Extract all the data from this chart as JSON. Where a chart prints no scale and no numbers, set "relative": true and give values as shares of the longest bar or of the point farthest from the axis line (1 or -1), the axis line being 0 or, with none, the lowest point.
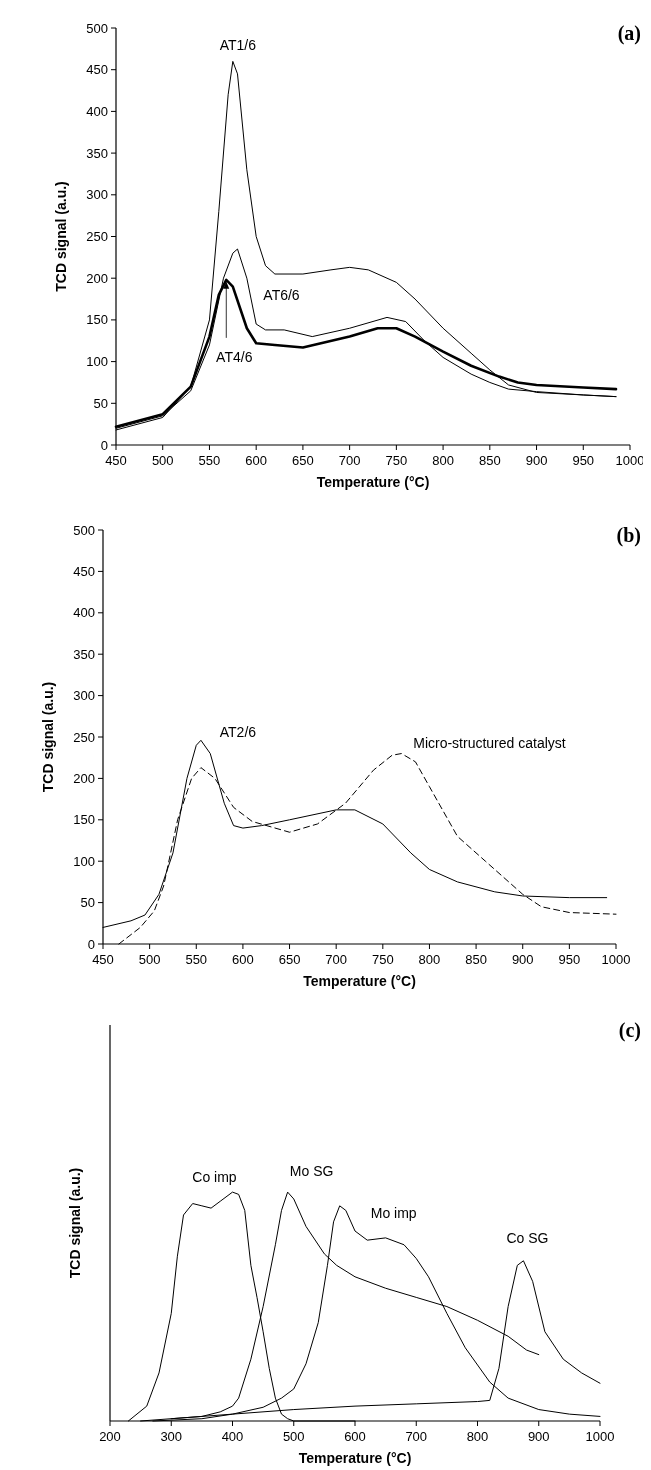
{
  "chart_data": [
    {
      "type": "line",
      "title": "(a)",
      "xlabel": "Temperature (°C)",
      "ylabel": "TCD signal (a.u.)",
      "xlim": [
        450,
        1000
      ],
      "ylim": [
        0,
        500
      ],
      "xticks": [
        450,
        500,
        550,
        600,
        650,
        700,
        750,
        800,
        850,
        900,
        950,
        1000
      ],
      "yticks": [
        0,
        50,
        100,
        150,
        200,
        250,
        300,
        350,
        400,
        450,
        500
      ],
      "line_style": "solid",
      "series": [
        {
          "name": "AT1/6",
          "color": "#000000",
          "x": [
            450,
            500,
            530,
            550,
            560,
            570,
            575,
            580,
            590,
            600,
            610,
            620,
            650,
            680,
            700,
            720,
            750,
            770,
            800,
            830,
            850,
            870,
            900,
            950,
            985
          ],
          "values": [
            18,
            33,
            70,
            150,
            280,
            420,
            460,
            445,
            330,
            250,
            215,
            205,
            205,
            210,
            213,
            210,
            195,
            175,
            140,
            110,
            90,
            72,
            63,
            60,
            58
          ]
        },
        {
          "name": "AT6/6",
          "color": "#000000",
          "x": [
            450,
            500,
            530,
            550,
            565,
            575,
            580,
            590,
            600,
            610,
            630,
            660,
            700,
            740,
            760,
            780,
            800,
            830,
            850,
            870,
            900,
            950,
            985
          ],
          "values": [
            20,
            35,
            65,
            120,
            200,
            230,
            235,
            200,
            145,
            138,
            138,
            130,
            140,
            153,
            148,
            125,
            105,
            85,
            75,
            67,
            64,
            60,
            58
          ]
        },
        {
          "name": "AT4/6",
          "color": "#000000",
          "x": [
            450,
            500,
            530,
            550,
            560,
            568,
            575,
            590,
            600,
            620,
            650,
            700,
            730,
            750,
            770,
            800,
            830,
            860,
            880,
            900,
            950,
            985
          ],
          "values": [
            22,
            37,
            70,
            130,
            180,
            198,
            190,
            140,
            122,
            120,
            117,
            130,
            140,
            140,
            130,
            112,
            95,
            82,
            75,
            72,
            69,
            67
          ]
        }
      ]
    },
    {
      "type": "line",
      "title": "(b)",
      "xlabel": "Temperature (°C)",
      "ylabel": "TCD signal (a.u.)",
      "xlim": [
        450,
        1000
      ],
      "ylim": [
        0,
        500
      ],
      "xticks": [
        450,
        500,
        550,
        600,
        650,
        700,
        750,
        800,
        850,
        900,
        950,
        1000
      ],
      "yticks": [
        0,
        50,
        100,
        150,
        200,
        250,
        300,
        350,
        400,
        450,
        500
      ],
      "series": [
        {
          "name": "AT2/6",
          "color": "#000000",
          "line_style": "solid",
          "x": [
            450,
            480,
            495,
            510,
            525,
            540,
            550,
            555,
            565,
            580,
            590,
            600,
            620,
            650,
            700,
            720,
            750,
            780,
            800,
            830,
            870,
            900,
            950,
            990
          ],
          "values": [
            20,
            28,
            35,
            60,
            110,
            200,
            240,
            246,
            230,
            170,
            143,
            140,
            143,
            150,
            162,
            162,
            145,
            110,
            90,
            75,
            63,
            58,
            56,
            56
          ]
        },
        {
          "name": "Micro-structured catalyst",
          "color": "#000000",
          "line_style": "dashed",
          "x": [
            467,
            490,
            505,
            515,
            530,
            545,
            555,
            570,
            590,
            610,
            650,
            680,
            710,
            740,
            760,
            770,
            785,
            800,
            830,
            860,
            900,
            920,
            950,
            1000
          ],
          "values": [
            0,
            20,
            40,
            70,
            150,
            200,
            213,
            200,
            165,
            148,
            135,
            145,
            170,
            210,
            228,
            230,
            220,
            190,
            130,
            100,
            60,
            45,
            38,
            36
          ]
        }
      ]
    },
    {
      "type": "line",
      "title": "(c)",
      "xlabel": "Temperature (°C)",
      "ylabel": "TCD signal (a.u.)",
      "relative": true,
      "xlim": [
        200,
        1000
      ],
      "xticks": [
        200,
        300,
        400,
        500,
        600,
        700,
        800,
        900,
        1000
      ],
      "line_style": "solid",
      "series": [
        {
          "name": "Co imp",
          "color": "#000000",
          "x": [
            230,
            260,
            280,
            300,
            310,
            320,
            335,
            350,
            365,
            380,
            400,
            410,
            420,
            430,
            440,
            450,
            460,
            470,
            480,
            490,
            500,
            600
          ],
          "values": [
            0,
            0.065,
            0.21,
            0.47,
            0.72,
            0.9,
            0.95,
            0.94,
            0.93,
            0.96,
            1.0,
            0.99,
            0.92,
            0.68,
            0.54,
            0.39,
            0.23,
            0.1,
            0.03,
            0.01,
            0,
            0
          ]
        },
        {
          "name": "Mo SG",
          "color": "#000000",
          "x": [
            250,
            300,
            350,
            380,
            400,
            410,
            430,
            450,
            470,
            480,
            490,
            500,
            520,
            550,
            570,
            600,
            650,
            700,
            750,
            800,
            850,
            880,
            900
          ],
          "values": [
            0,
            0.01,
            0.02,
            0.04,
            0.065,
            0.1,
            0.27,
            0.5,
            0.77,
            0.92,
            1.0,
            0.97,
            0.85,
            0.73,
            0.68,
            0.63,
            0.58,
            0.54,
            0.5,
            0.44,
            0.37,
            0.31,
            0.29
          ]
        },
        {
          "name": "Mo imp",
          "color": "#000000",
          "x": [
            270,
            350,
            400,
            450,
            480,
            500,
            520,
            540,
            555,
            565,
            575,
            585,
            600,
            620,
            650,
            680,
            700,
            720,
            750,
            780,
            820,
            850,
            900,
            950,
            1000
          ],
          "values": [
            0,
            0.01,
            0.03,
            0.06,
            0.1,
            0.14,
            0.25,
            0.43,
            0.68,
            0.87,
            0.94,
            0.92,
            0.83,
            0.79,
            0.8,
            0.77,
            0.71,
            0.63,
            0.47,
            0.32,
            0.17,
            0.1,
            0.05,
            0.03,
            0.02
          ]
        },
        {
          "name": "Co SG",
          "color": "#000000",
          "x": [
            300,
            400,
            500,
            600,
            700,
            800,
            820,
            835,
            850,
            865,
            875,
            890,
            910,
            940,
            970,
            1000
          ],
          "values": [
            0.01,
            0.03,
            0.05,
            0.065,
            0.075,
            0.085,
            0.09,
            0.23,
            0.5,
            0.68,
            0.7,
            0.61,
            0.39,
            0.27,
            0.21,
            0.165
          ]
        }
      ]
    }
  ]
}
